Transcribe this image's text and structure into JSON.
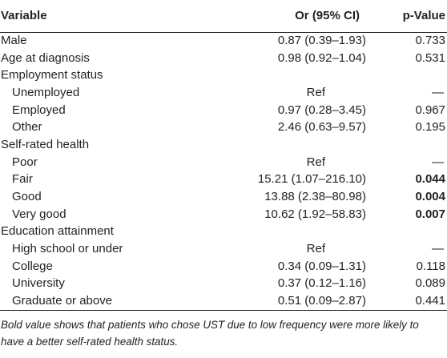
{
  "table": {
    "headers": {
      "variable": "Variable",
      "or": "Or (95% CI)",
      "p": "p-Value"
    },
    "rows": [
      {
        "variable": "Male",
        "or": "0.87 (0.39–1.93)",
        "p": "0.733"
      },
      {
        "variable": "Age at diagnosis",
        "or": "0.98 (0.92–1.04)",
        "p": "0.531"
      },
      {
        "variable": "Employment status",
        "or": "",
        "p": ""
      },
      {
        "variable": "Unemployed",
        "or": "Ref",
        "p": "—"
      },
      {
        "variable": "Employed",
        "or": "0.97 (0.28–3.45)",
        "p": "0.967"
      },
      {
        "variable": "Other",
        "or": "2.46 (0.63–9.57)",
        "p": "0.195"
      },
      {
        "variable": "Self-rated health",
        "or": "",
        "p": ""
      },
      {
        "variable": "Poor",
        "or": "Ref",
        "p": "—"
      },
      {
        "variable": "Fair",
        "or": "15.21 (1.07–216.10)",
        "p": "0.044"
      },
      {
        "variable": "Good",
        "or": "13.88 (2.38–80.98)",
        "p": "0.004"
      },
      {
        "variable": "Very good",
        "or": "10.62 (1.92–58.83)",
        "p": "0.007"
      },
      {
        "variable": "Education attainment",
        "or": "",
        "p": ""
      },
      {
        "variable": "High school or under",
        "or": "Ref",
        "p": "—"
      },
      {
        "variable": "College",
        "or": "0.34 (0.09–1.31)",
        "p": "0.118"
      },
      {
        "variable": "University",
        "or": "0.37 (0.12–1.16)",
        "p": "0.089"
      },
      {
        "variable": "Graduate or above",
        "or": "0.51 (0.09–2.87)",
        "p": "0.441"
      }
    ]
  },
  "footnote": "Bold value shows that patients who chose UST due to low frequency were more likely to have a better self-rated health status."
}
